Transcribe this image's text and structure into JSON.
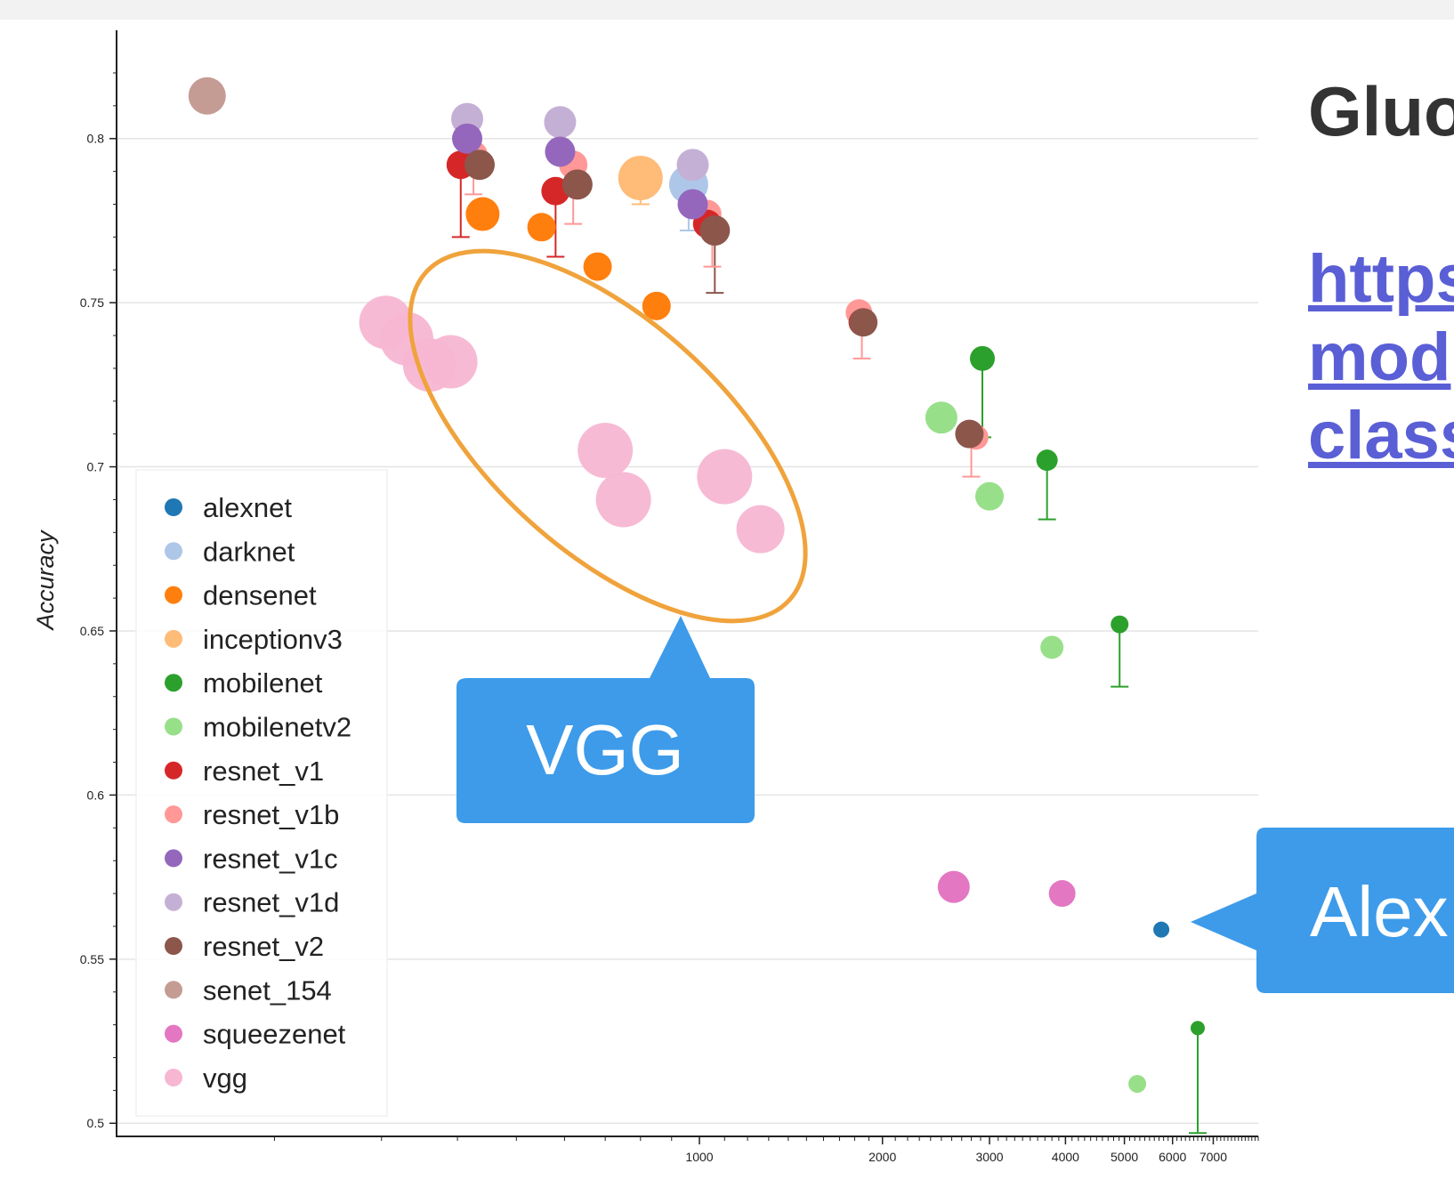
{
  "slide": {
    "title": "Gluo",
    "link_lines": [
      "https",
      "mod",
      "class"
    ]
  },
  "annotations": {
    "vgg_callout": "VGG",
    "alexnet_callout": "Alex"
  },
  "colors": {
    "alexnet": "#1f77b4",
    "darknet": "#aec7e8",
    "densenet": "#ff7f0e",
    "inceptionv3": "#ffbb78",
    "mobilenet": "#2ca02c",
    "mobilenetv2": "#98df8a",
    "resnet_v1": "#d62728",
    "resnet_v1b": "#ff9896",
    "resnet_v1c": "#9467bd",
    "resnet_v1d": "#c5b0d5",
    "resnet_v2": "#8c564b",
    "senet_154": "#c49c94",
    "squeezenet": "#e377c2",
    "vgg": "#f7b6d2",
    "callout": "#3d9be9",
    "highlight": "#f0a33c"
  },
  "chart_data": {
    "type": "scatter",
    "title": "",
    "xlabel": "",
    "ylabel": "Accuracy",
    "xscale": "log",
    "xlim": [
      110,
      8300
    ],
    "ylim": [
      0.496,
      0.833
    ],
    "grid": true,
    "legend_position": "bottom-left",
    "xticks": [
      1000,
      2000,
      3000,
      4000,
      5000,
      6000,
      7000
    ],
    "xtick_labels": [
      "1000",
      "2000",
      "3000",
      "4000",
      "5000",
      "6000",
      "7000"
    ],
    "yticks": [
      0.5,
      0.55,
      0.6,
      0.65,
      0.7,
      0.75,
      0.8
    ],
    "ytick_labels": [
      "0.5",
      "0.55",
      "0.6",
      "0.65",
      "0.7",
      "0.75",
      "0.8"
    ],
    "legend": [
      "alexnet",
      "darknet",
      "densenet",
      "inceptionv3",
      "mobilenet",
      "mobilenetv2",
      "resnet_v1",
      "resnet_v1b",
      "resnet_v1c",
      "resnet_v1d",
      "resnet_v2",
      "senet_154",
      "squeezenet",
      "vgg"
    ],
    "series": [
      {
        "name": "senet_154",
        "points": [
          {
            "x": 155,
            "y": 0.813,
            "size": 42
          }
        ]
      },
      {
        "name": "alexnet",
        "points": [
          {
            "x": 5750,
            "y": 0.559,
            "size": 18
          }
        ]
      },
      {
        "name": "darknet",
        "points": [
          {
            "x": 960,
            "y": 0.786,
            "size": 44
          }
        ]
      },
      {
        "name": "inceptionv3",
        "points": [
          {
            "x": 800,
            "y": 0.788,
            "size": 50
          }
        ]
      },
      {
        "name": "densenet",
        "points": [
          {
            "x": 440,
            "y": 0.777,
            "size": 38
          },
          {
            "x": 550,
            "y": 0.773,
            "size": 32
          },
          {
            "x": 680,
            "y": 0.761,
            "size": 32
          },
          {
            "x": 850,
            "y": 0.749,
            "size": 32
          }
        ]
      },
      {
        "name": "resnet_v1",
        "points": [
          {
            "x": 405,
            "y": 0.792,
            "size": 32
          },
          {
            "x": 580,
            "y": 0.784,
            "size": 32
          },
          {
            "x": 1030,
            "y": 0.774,
            "size": 32
          },
          {
            "x": 1850,
            "y": 0.744,
            "size": 30
          }
        ]
      },
      {
        "name": "resnet_v1b",
        "points": [
          {
            "x": 425,
            "y": 0.795,
            "size": 32
          },
          {
            "x": 620,
            "y": 0.792,
            "size": 32
          },
          {
            "x": 1030,
            "y": 0.777,
            "size": 32
          },
          {
            "x": 1830,
            "y": 0.747,
            "size": 30
          },
          {
            "x": 2850,
            "y": 0.709,
            "size": 28
          }
        ]
      },
      {
        "name": "resnet_v1c",
        "points": [
          {
            "x": 415,
            "y": 0.8,
            "size": 34
          },
          {
            "x": 590,
            "y": 0.796,
            "size": 34
          },
          {
            "x": 975,
            "y": 0.78,
            "size": 34
          }
        ]
      },
      {
        "name": "resnet_v1d",
        "points": [
          {
            "x": 415,
            "y": 0.806,
            "size": 36
          },
          {
            "x": 590,
            "y": 0.805,
            "size": 36
          },
          {
            "x": 975,
            "y": 0.792,
            "size": 36
          }
        ]
      },
      {
        "name": "resnet_v2",
        "points": [
          {
            "x": 435,
            "y": 0.792,
            "size": 34
          },
          {
            "x": 630,
            "y": 0.786,
            "size": 34
          },
          {
            "x": 1060,
            "y": 0.772,
            "size": 34
          },
          {
            "x": 1860,
            "y": 0.744,
            "size": 32
          },
          {
            "x": 2780,
            "y": 0.71,
            "size": 32
          }
        ]
      },
      {
        "name": "mobilenet",
        "points": [
          {
            "x": 2920,
            "y": 0.733,
            "size": 28
          },
          {
            "x": 3730,
            "y": 0.702,
            "size": 24
          },
          {
            "x": 4910,
            "y": 0.652,
            "size": 20
          },
          {
            "x": 6600,
            "y": 0.529,
            "size": 16
          }
        ]
      },
      {
        "name": "mobilenetv2",
        "points": [
          {
            "x": 2500,
            "y": 0.715,
            "size": 36
          },
          {
            "x": 3000,
            "y": 0.691,
            "size": 32
          },
          {
            "x": 3800,
            "y": 0.645,
            "size": 26
          },
          {
            "x": 5250,
            "y": 0.512,
            "size": 20
          }
        ]
      },
      {
        "name": "squeezenet",
        "points": [
          {
            "x": 2620,
            "y": 0.572,
            "size": 36
          },
          {
            "x": 3950,
            "y": 0.57,
            "size": 30
          }
        ]
      },
      {
        "name": "vgg",
        "points": [
          {
            "x": 305,
            "y": 0.744,
            "size": 60
          },
          {
            "x": 330,
            "y": 0.739,
            "size": 60
          },
          {
            "x": 360,
            "y": 0.731,
            "size": 60
          },
          {
            "x": 390,
            "y": 0.732,
            "size": 60
          },
          {
            "x": 700,
            "y": 0.705,
            "size": 62
          },
          {
            "x": 750,
            "y": 0.69,
            "size": 62
          },
          {
            "x": 1100,
            "y": 0.697,
            "size": 62
          },
          {
            "x": 1260,
            "y": 0.681,
            "size": 54
          }
        ]
      }
    ],
    "error_bars": [
      {
        "series": "resnet_v1",
        "x": 405,
        "y_from": 0.792,
        "y_to": 0.77
      },
      {
        "series": "resnet_v1b",
        "x": 425,
        "y_from": 0.795,
        "y_to": 0.783
      },
      {
        "series": "resnet_v1",
        "x": 580,
        "y_from": 0.784,
        "y_to": 0.764
      },
      {
        "series": "resnet_v1b",
        "x": 620,
        "y_from": 0.792,
        "y_to": 0.774
      },
      {
        "series": "darknet",
        "x": 960,
        "y_from": 0.786,
        "y_to": 0.772
      },
      {
        "series": "inceptionv3",
        "x": 800,
        "y_from": 0.788,
        "y_to": 0.78
      },
      {
        "series": "resnet_v2",
        "x": 1060,
        "y_from": 0.772,
        "y_to": 0.753
      },
      {
        "series": "resnet_v1b",
        "x": 1050,
        "y_from": 0.777,
        "y_to": 0.761
      },
      {
        "series": "resnet_v1b",
        "x": 1850,
        "y_from": 0.747,
        "y_to": 0.733
      },
      {
        "series": "resnet_v1b",
        "x": 2800,
        "y_from": 0.709,
        "y_to": 0.697
      },
      {
        "series": "mobilenet",
        "x": 2920,
        "y_from": 0.733,
        "y_to": 0.709
      },
      {
        "series": "mobilenet",
        "x": 3730,
        "y_from": 0.702,
        "y_to": 0.684
      },
      {
        "series": "mobilenet",
        "x": 4910,
        "y_from": 0.652,
        "y_to": 0.633
      },
      {
        "series": "mobilenet",
        "x": 6600,
        "y_from": 0.529,
        "y_to": 0.497
      }
    ]
  }
}
